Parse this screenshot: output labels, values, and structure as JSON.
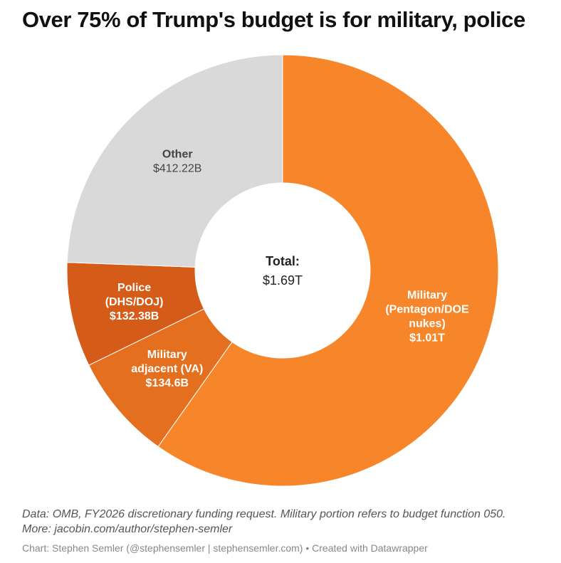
{
  "title": "Over 75% of Trump's budget is for military, police",
  "chart_data": {
    "type": "pie",
    "variant": "donut",
    "slices": [
      {
        "label": [
          "Military",
          "(Pentagon/DOE",
          "nukes)"
        ],
        "value_label": "$1.01T",
        "value": 1010,
        "color": "#f7862a",
        "text_color": "#ffffff"
      },
      {
        "label": [
          "Military",
          "adjacent (VA)"
        ],
        "value_label": "$134.6B",
        "value": 134.6,
        "color": "#e46f1e",
        "text_color": "#ffffff"
      },
      {
        "label": [
          "Police",
          "(DHS/DOJ)"
        ],
        "value_label": "$132.38B",
        "value": 132.38,
        "color": "#d55b18",
        "text_color": "#ffffff"
      },
      {
        "label": [
          "Other"
        ],
        "value_label": "$412.22B",
        "value": 412.22,
        "color": "#d9d9d9",
        "text_color": "#444444"
      }
    ],
    "center_label": "Total:",
    "center_value": "$1.69T",
    "units": "USD, billions"
  },
  "notes": [
    "Data: OMB, FY2026 discretionary funding request. Military portion refers to budget function 050.",
    "More: jacobin.com/author/stephen-semler"
  ],
  "credit": "Chart: Stephen Semler (@stephensemler | stephensemler.com) • Created with Datawrapper"
}
